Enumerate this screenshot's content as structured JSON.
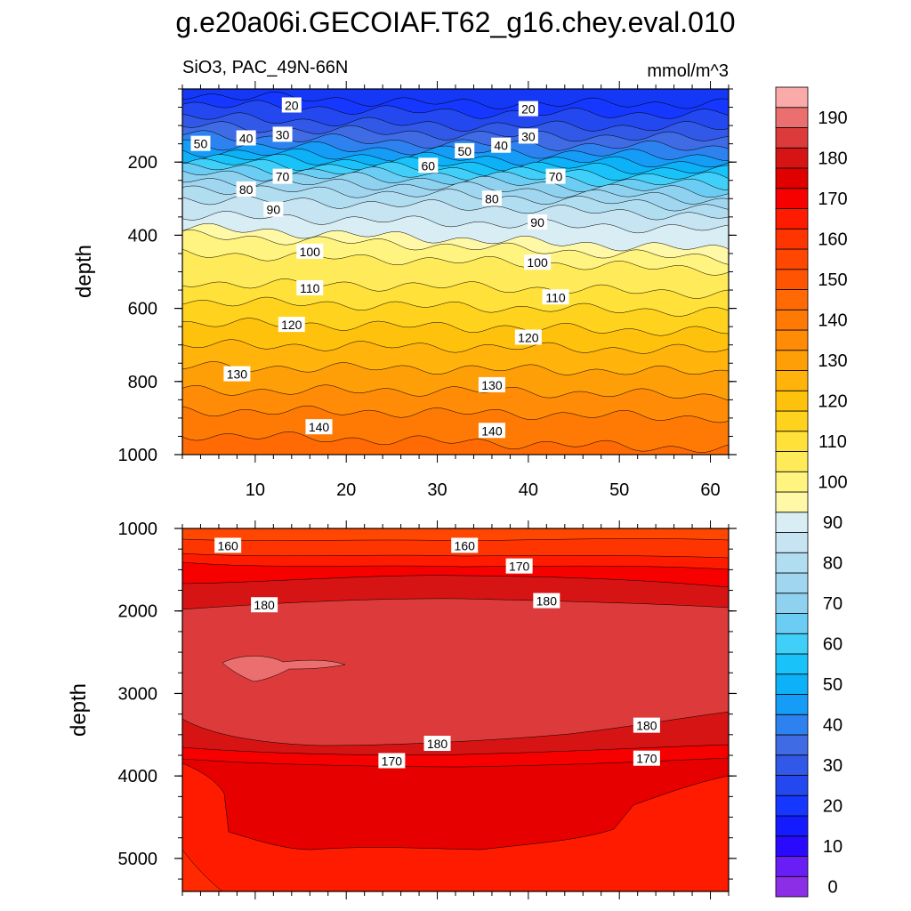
{
  "title": "g.e20a06i.GECOIAF.T62_g16.chey.eval.010",
  "subtitle_left": "SiO3, PAC_49N-66N",
  "subtitle_right": "mmol/m^3",
  "chart_data": {
    "type": "heatmap",
    "variable": "SiO3",
    "region": "PAC_49N-66N",
    "units": "mmol/m^3",
    "x": {
      "label": "",
      "range": [
        2,
        62
      ],
      "ticks": [
        10,
        20,
        30,
        40,
        50,
        60
      ]
    },
    "panels": [
      {
        "name": "upper",
        "ylabel": "depth",
        "ylim": [
          0,
          1000
        ],
        "y_ticks": [
          200,
          400,
          600,
          800,
          1000
        ],
        "contour_interval": 5,
        "contours": [
          {
            "level": 20,
            "depth_left": 15,
            "depth_mid": 40,
            "depth_right": 40
          },
          {
            "level": 25,
            "depth_left": 40,
            "depth_mid": 65,
            "depth_right": 70
          },
          {
            "level": 30,
            "depth_left": 75,
            "depth_mid": 100,
            "depth_right": 105
          },
          {
            "level": 35,
            "depth_left": 100,
            "depth_mid": 125,
            "depth_right": 135
          },
          {
            "level": 40,
            "depth_left": 125,
            "depth_mid": 150,
            "depth_right": 160
          },
          {
            "level": 45,
            "depth_left": 150,
            "depth_mid": 170,
            "depth_right": 185
          },
          {
            "level": 50,
            "depth_left": 170,
            "depth_mid": 190,
            "depth_right": 205
          },
          {
            "level": 55,
            "depth_left": 185,
            "depth_mid": 205,
            "depth_right": 225
          },
          {
            "level": 60,
            "depth_left": 200,
            "depth_mid": 220,
            "depth_right": 245
          },
          {
            "level": 65,
            "depth_left": 215,
            "depth_mid": 235,
            "depth_right": 265
          },
          {
            "level": 70,
            "depth_left": 230,
            "depth_mid": 250,
            "depth_right": 285
          },
          {
            "level": 75,
            "depth_left": 250,
            "depth_mid": 268,
            "depth_right": 305
          },
          {
            "level": 80,
            "depth_left": 270,
            "depth_mid": 290,
            "depth_right": 325
          },
          {
            "level": 85,
            "depth_left": 300,
            "depth_mid": 320,
            "depth_right": 350
          },
          {
            "level": 90,
            "depth_left": 345,
            "depth_mid": 365,
            "depth_right": 385
          },
          {
            "level": 95,
            "depth_left": 380,
            "depth_mid": 410,
            "depth_right": 440
          },
          {
            "level": 100,
            "depth_left": 400,
            "depth_mid": 430,
            "depth_right": 465
          },
          {
            "level": 105,
            "depth_left": 450,
            "depth_mid": 470,
            "depth_right": 495
          },
          {
            "level": 110,
            "depth_left": 530,
            "depth_mid": 540,
            "depth_right": 560
          },
          {
            "level": 115,
            "depth_left": 580,
            "depth_mid": 595,
            "depth_right": 610
          },
          {
            "level": 120,
            "depth_left": 640,
            "depth_mid": 650,
            "depth_right": 665
          },
          {
            "level": 125,
            "depth_left": 700,
            "depth_mid": 705,
            "depth_right": 715
          },
          {
            "level": 130,
            "depth_left": 760,
            "depth_mid": 765,
            "depth_right": 775
          },
          {
            "level": 135,
            "depth_left": 825,
            "depth_mid": 825,
            "depth_right": 840
          },
          {
            "level": 140,
            "depth_left": 880,
            "depth_mid": 885,
            "depth_right": 900
          },
          {
            "level": 145,
            "depth_left": 945,
            "depth_mid": 965,
            "depth_right": 985
          }
        ],
        "labels": [
          {
            "text": "20",
            "x": 14,
            "depth": 45
          },
          {
            "text": "20",
            "x": 40,
            "depth": 55
          },
          {
            "text": "30",
            "x": 13,
            "depth": 125
          },
          {
            "text": "30",
            "x": 40,
            "depth": 130
          },
          {
            "text": "40",
            "x": 9,
            "depth": 135
          },
          {
            "text": "40",
            "x": 37,
            "depth": 155
          },
          {
            "text": "50",
            "x": 4,
            "depth": 150
          },
          {
            "text": "50",
            "x": 33,
            "depth": 170
          },
          {
            "text": "60",
            "x": 29,
            "depth": 210
          },
          {
            "text": "70",
            "x": 13,
            "depth": 240
          },
          {
            "text": "70",
            "x": 43,
            "depth": 240
          },
          {
            "text": "80",
            "x": 9,
            "depth": 275
          },
          {
            "text": "80",
            "x": 36,
            "depth": 300
          },
          {
            "text": "90",
            "x": 12,
            "depth": 330
          },
          {
            "text": "90",
            "x": 41,
            "depth": 365
          },
          {
            "text": "100",
            "x": 16,
            "depth": 445
          },
          {
            "text": "100",
            "x": 41,
            "depth": 475
          },
          {
            "text": "110",
            "x": 16,
            "depth": 545
          },
          {
            "text": "110",
            "x": 43,
            "depth": 570
          },
          {
            "text": "120",
            "x": 14,
            "depth": 645
          },
          {
            "text": "120",
            "x": 40,
            "depth": 680
          },
          {
            "text": "130",
            "x": 8,
            "depth": 780
          },
          {
            "text": "130",
            "x": 36,
            "depth": 810
          },
          {
            "text": "140",
            "x": 17,
            "depth": 925
          },
          {
            "text": "140",
            "x": 36,
            "depth": 935
          }
        ]
      },
      {
        "name": "lower",
        "ylabel": "depth",
        "ylim": [
          1000,
          5400
        ],
        "y_ticks": [
          1000,
          2000,
          3000,
          4000,
          5000
        ],
        "labels": [
          {
            "text": "160",
            "x": 7,
            "depth": 1210
          },
          {
            "text": "160",
            "x": 33,
            "depth": 1210
          },
          {
            "text": "170",
            "x": 39,
            "depth": 1460
          },
          {
            "text": "180",
            "x": 11,
            "depth": 1930
          },
          {
            "text": "180",
            "x": 42,
            "depth": 1880
          },
          {
            "text": "180",
            "x": 30,
            "depth": 3610
          },
          {
            "text": "180",
            "x": 53,
            "depth": 3390
          },
          {
            "text": "170",
            "x": 25,
            "depth": 3820
          },
          {
            "text": "170",
            "x": 53,
            "depth": 3790
          }
        ]
      }
    ],
    "colorbar": {
      "levels": [
        0,
        5,
        10,
        15,
        20,
        25,
        30,
        35,
        40,
        45,
        50,
        55,
        60,
        65,
        70,
        75,
        80,
        85,
        90,
        95,
        100,
        105,
        110,
        115,
        120,
        125,
        130,
        135,
        140,
        145,
        150,
        155,
        160,
        165,
        170,
        175,
        180,
        185,
        190,
        195
      ],
      "labels": [
        "0",
        "10",
        "20",
        "30",
        "40",
        "50",
        "60",
        "70",
        "80",
        "90",
        "100",
        "110",
        "120",
        "130",
        "140",
        "150",
        "160",
        "170",
        "180",
        "190"
      ],
      "colors": [
        "#8b2ee6",
        "#6a1ef6",
        "#2a0aff",
        "#141cff",
        "#1637ff",
        "#2348ef",
        "#3158e7",
        "#3f6be4",
        "#2e82f0",
        "#159cf6",
        "#0cb1f7",
        "#19c3f9",
        "#3fcff8",
        "#6ccdf4",
        "#8fd2f0",
        "#a1d6f1",
        "#b1ddf1",
        "#c7e4f2",
        "#d8eef4",
        "#fff8a6",
        "#fff47f",
        "#ffeb5a",
        "#ffe13a",
        "#ffd21e",
        "#ffc20c",
        "#ffb30b",
        "#ff9f08",
        "#ff8b06",
        "#ff7a05",
        "#ff6a04",
        "#ff5502",
        "#ff4702",
        "#ff3501",
        "#ff1b00",
        "#f70000",
        "#e00000",
        "#d61414",
        "#dd3b3b",
        "#ec6f6f",
        "#fbaaaa"
      ]
    }
  }
}
